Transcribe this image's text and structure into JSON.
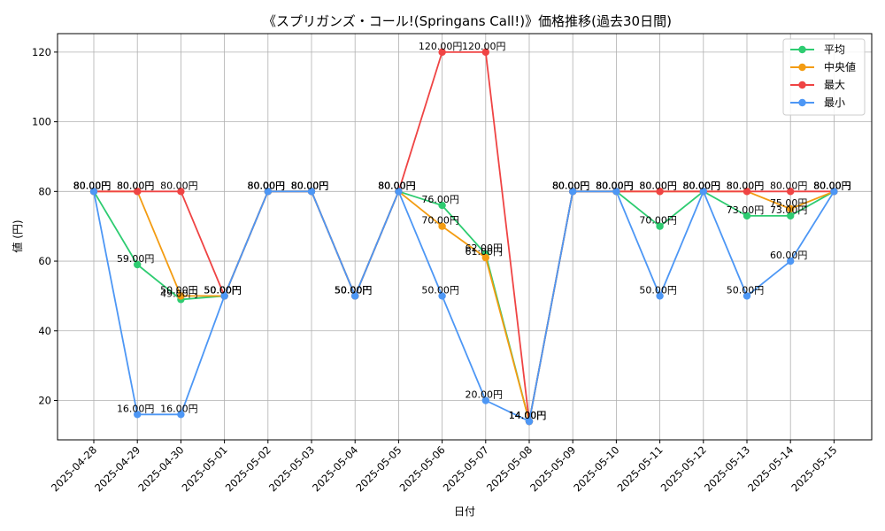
{
  "chart_data": {
    "type": "line",
    "title": "《スプリガンズ・コール!(Springans Call!)》価格推移(過去30日間)",
    "xlabel": "日付",
    "ylabel": "値 (円)",
    "ylim": [
      8.7,
      125.3
    ],
    "yticks": [
      20,
      40,
      60,
      80,
      100,
      120
    ],
    "grid": true,
    "legend_position": "top-right",
    "categories": [
      "2025-04-28",
      "2025-04-29",
      "2025-04-30",
      "2025-05-01",
      "2025-05-02",
      "2025-05-03",
      "2025-05-04",
      "2025-05-05",
      "2025-05-06",
      "2025-05-07",
      "2025-05-08",
      "2025-05-09",
      "2025-05-10",
      "2025-05-11",
      "2025-05-12",
      "2025-05-13",
      "2025-05-14",
      "2025-05-15"
    ],
    "series": [
      {
        "name": "平均",
        "color": "#2ecc71",
        "values": [
          80,
          59,
          49,
          50,
          80,
          80,
          50,
          80,
          76,
          62,
          14,
          80,
          80,
          70,
          80,
          73,
          73,
          80
        ]
      },
      {
        "name": "中央値",
        "color": "#f39c12",
        "values": [
          80,
          80,
          50,
          50,
          80,
          80,
          50,
          80,
          70,
          61,
          14,
          80,
          80,
          80,
          80,
          80,
          75,
          80
        ]
      },
      {
        "name": "最大",
        "color": "#ef4444",
        "values": [
          80,
          80,
          80,
          50,
          80,
          80,
          50,
          80,
          120,
          120,
          14,
          80,
          80,
          80,
          80,
          80,
          80,
          80
        ]
      },
      {
        "name": "最小",
        "color": "#4d97f5",
        "values": [
          80,
          16,
          16,
          50,
          80,
          80,
          50,
          80,
          50,
          20,
          14,
          80,
          80,
          50,
          80,
          50,
          60,
          80
        ]
      }
    ],
    "value_suffix": "円"
  }
}
